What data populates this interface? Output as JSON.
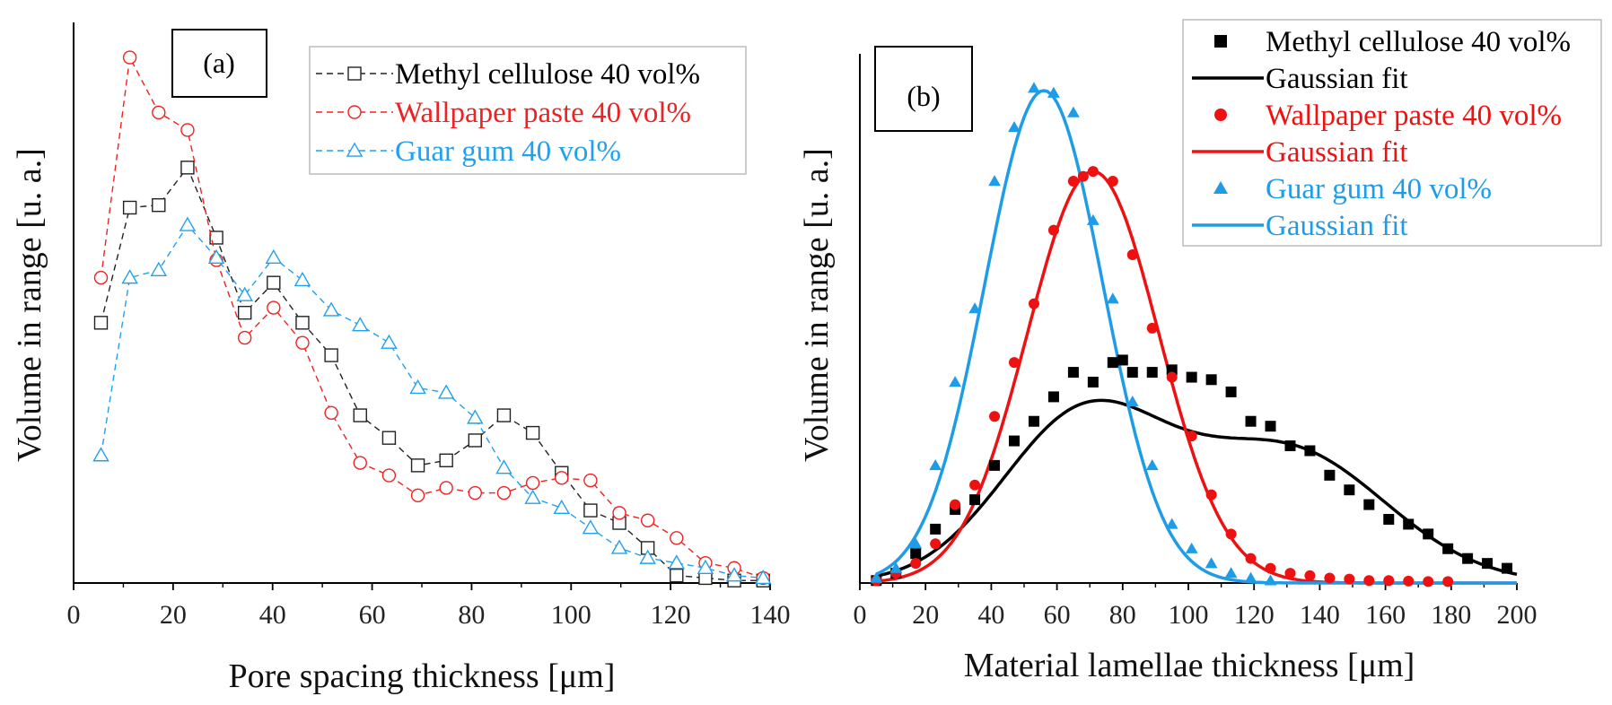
{
  "chart_data": [
    {
      "panel": "a",
      "type": "line",
      "panel_label": "(a)",
      "xlabel": "Pore spacing thickness [μm]",
      "ylabel": "Volume in range [u. a.]",
      "xlim": [
        0,
        140
      ],
      "ylim": [
        0,
        1.0
      ],
      "xticks": [
        "0",
        "20",
        "40",
        "60",
        "80",
        "100",
        "120",
        "140"
      ],
      "legend_position": "top-right",
      "series": [
        {
          "name": "Methyl cellulose 40 vol%",
          "color": "#222222",
          "marker": "square",
          "dash": "dashed",
          "x": [
            5.5,
            11.3,
            17.1,
            22.9,
            28.7,
            34.4,
            40.2,
            46,
            51.8,
            57.6,
            63.4,
            69.2,
            74.9,
            80.7,
            86.5,
            92.3,
            98.1,
            103.9,
            109.7,
            115.4,
            121.2,
            127,
            132.8,
            138.6
          ],
          "y": [
            0.52,
            0.75,
            0.755,
            0.83,
            0.69,
            0.54,
            0.6,
            0.52,
            0.455,
            0.335,
            0.29,
            0.235,
            0.245,
            0.285,
            0.335,
            0.3,
            0.22,
            0.145,
            0.12,
            0.07,
            0.015,
            0.01,
            0.005,
            0.005
          ]
        },
        {
          "name": "Wallpaper paste 40 vol%",
          "color": "#ee2222",
          "marker": "circle",
          "dash": "dashed",
          "x": [
            5.5,
            11.3,
            17.1,
            22.9,
            28.7,
            34.4,
            40.2,
            46,
            51.8,
            57.6,
            63.4,
            69.2,
            74.9,
            80.7,
            86.5,
            92.3,
            98.1,
            103.9,
            109.7,
            115.4,
            121.2,
            127,
            132.8,
            138.6
          ],
          "y": [
            0.61,
            1.05,
            0.94,
            0.905,
            0.645,
            0.49,
            0.55,
            0.48,
            0.34,
            0.24,
            0.215,
            0.175,
            0.19,
            0.18,
            0.18,
            0.2,
            0.21,
            0.205,
            0.14,
            0.125,
            0.09,
            0.04,
            0.03,
            0.01
          ]
        },
        {
          "name": "Guar gum 40 vol%",
          "color": "#22a0ee",
          "marker": "triangle",
          "dash": "dashed",
          "x": [
            5.5,
            11.3,
            17.1,
            22.9,
            28.7,
            34.4,
            40.2,
            46,
            51.8,
            57.6,
            63.4,
            69.2,
            74.9,
            80.7,
            86.5,
            92.3,
            98.1,
            103.9,
            109.7,
            115.4,
            121.2,
            127,
            132.8,
            138.6
          ],
          "y": [
            0.255,
            0.61,
            0.625,
            0.715,
            0.65,
            0.575,
            0.65,
            0.605,
            0.545,
            0.515,
            0.48,
            0.39,
            0.38,
            0.33,
            0.23,
            0.17,
            0.15,
            0.11,
            0.07,
            0.05,
            0.04,
            0.03,
            0.015,
            0.01
          ]
        }
      ]
    },
    {
      "panel": "b",
      "type": "scatter",
      "panel_label": "(b)",
      "xlabel": "Material lamellae thickness [μm]",
      "ylabel": "Volume in range [u. a.]",
      "xlim": [
        0,
        200
      ],
      "ylim": [
        0,
        1.0
      ],
      "xticks": [
        "0",
        "20",
        "40",
        "60",
        "80",
        "100",
        "120",
        "140",
        "160",
        "180",
        "200"
      ],
      "legend_position": "top-right",
      "legend": [
        {
          "label": "Methyl cellulose 40 vol%",
          "color": "#000000",
          "kind": "square"
        },
        {
          "label": "Gaussian fit",
          "color": "#000000",
          "kind": "line"
        },
        {
          "label": "Wallpaper paste 40 vol%",
          "color": "#ee1111",
          "kind": "circle"
        },
        {
          "label": "Gaussian fit",
          "color": "#ee1111",
          "kind": "line"
        },
        {
          "label": "Guar gum 40 vol%",
          "color": "#1f9ce8",
          "kind": "triangle"
        },
        {
          "label": "Gaussian fit",
          "color": "#1f9ce8",
          "kind": "line"
        }
      ],
      "series": [
        {
          "name": "Methyl cellulose 40 vol%",
          "color": "#000000",
          "marker": "square",
          "x": [
            5,
            11,
            17,
            23,
            29,
            35,
            41,
            47,
            53,
            59,
            65,
            71,
            77,
            80,
            83,
            89,
            95,
            101,
            107,
            113,
            119,
            125,
            131,
            137,
            143,
            149,
            155,
            161,
            167,
            173,
            179,
            185,
            191,
            197
          ],
          "y": [
            0.005,
            0.02,
            0.06,
            0.11,
            0.15,
            0.17,
            0.24,
            0.29,
            0.33,
            0.38,
            0.43,
            0.41,
            0.45,
            0.455,
            0.43,
            0.43,
            0.435,
            0.42,
            0.415,
            0.39,
            0.33,
            0.32,
            0.28,
            0.27,
            0.22,
            0.19,
            0.16,
            0.13,
            0.12,
            0.1,
            0.07,
            0.05,
            0.04,
            0.03
          ]
        },
        {
          "name": "Wallpaper paste 40 vol%",
          "color": "#ee1111",
          "marker": "circle",
          "x": [
            5,
            11,
            17,
            23,
            29,
            35,
            41,
            47,
            53,
            59,
            65,
            68,
            71,
            77,
            83,
            89,
            95,
            101,
            107,
            113,
            119,
            125,
            131,
            137,
            143,
            149,
            155,
            161,
            167,
            173,
            179
          ],
          "y": [
            0.005,
            0.02,
            0.04,
            0.08,
            0.16,
            0.2,
            0.34,
            0.45,
            0.57,
            0.72,
            0.82,
            0.83,
            0.84,
            0.82,
            0.67,
            0.52,
            0.42,
            0.3,
            0.18,
            0.1,
            0.05,
            0.03,
            0.02,
            0.015,
            0.01,
            0.008,
            0.005,
            0.005,
            0.004,
            0.003,
            0.003
          ]
        },
        {
          "name": "Guar gum 40 vol%",
          "color": "#1f9ce8",
          "marker": "triangle",
          "x": [
            5,
            11,
            17,
            23,
            29,
            35,
            41,
            47,
            53,
            59,
            65,
            71,
            77,
            83,
            89,
            95,
            101,
            107,
            113,
            119,
            125
          ],
          "y": [
            0.01,
            0.03,
            0.08,
            0.24,
            0.41,
            0.56,
            0.82,
            0.93,
            1.01,
            1.0,
            0.96,
            0.74,
            0.58,
            0.37,
            0.24,
            0.12,
            0.07,
            0.04,
            0.02,
            0.01,
            0.005
          ]
        }
      ],
      "fits": [
        {
          "name": "Gaussian fit",
          "color": "#000000",
          "comment": "methyl cellulose double-gaussian",
          "components": [
            {
              "a": 0.335,
              "mu": 68,
              "sigma": 25
            },
            {
              "a": 0.27,
              "mu": 130,
              "sigma": 30
            }
          ]
        },
        {
          "name": "Gaussian fit",
          "color": "#ee1111",
          "components": [
            {
              "a": 0.84,
              "mu": 71,
              "sigma": 20
            }
          ]
        },
        {
          "name": "Gaussian fit",
          "color": "#1f9ce8",
          "components": [
            {
              "a": 1.005,
              "mu": 56,
              "sigma": 18
            }
          ]
        }
      ]
    }
  ]
}
